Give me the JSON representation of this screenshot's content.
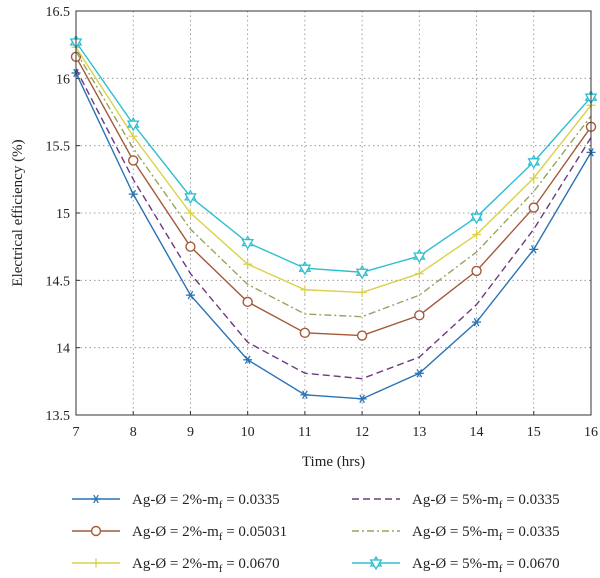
{
  "chart_data": {
    "type": "line",
    "title": "",
    "xlabel": "Time (hrs)",
    "ylabel": "Electrical efficiency (%)",
    "xlim": [
      7,
      16
    ],
    "ylim": [
      13.5,
      16.5
    ],
    "x": [
      7,
      8,
      9,
      10,
      11,
      12,
      13,
      14,
      15,
      16
    ],
    "xticks": [
      "7",
      "8",
      "9",
      "10",
      "11",
      "12",
      "13",
      "14",
      "15",
      "16"
    ],
    "yticks": [
      "13.5",
      "14",
      "14.5",
      "15",
      "15.5",
      "16",
      "16.5"
    ],
    "grid": true,
    "legend_position": "bottom",
    "series": [
      {
        "name": "Ag-Ø = 2%-m",
        "name_sub": "f",
        "name_tail": " = 0.0335",
        "color": "#2a73b6",
        "dash": "solid",
        "marker": "asterisk",
        "values": [
          16.04,
          15.14,
          14.39,
          13.91,
          13.65,
          13.62,
          13.81,
          14.19,
          14.73,
          15.45
        ]
      },
      {
        "name": "Ag-Ø = 5%-m",
        "name_sub": "f",
        "name_tail": " = 0.0335",
        "color": "#6e3a7e",
        "dash": "dashed",
        "marker": "none",
        "values": [
          16.07,
          15.25,
          14.55,
          14.04,
          13.81,
          13.77,
          13.93,
          14.32,
          14.88,
          15.56
        ]
      },
      {
        "name": "Ag-Ø = 2%-m",
        "name_sub": "f",
        "name_tail": " = 0.05031",
        "color": "#a25a3a",
        "dash": "solid",
        "marker": "circle",
        "values": [
          16.16,
          15.39,
          14.75,
          14.34,
          14.11,
          14.09,
          14.24,
          14.57,
          15.04,
          15.64
        ]
      },
      {
        "name": "Ag-Ø = 5%-m",
        "name_sub": "f",
        "name_tail": " = 0.0335",
        "color": "#9aa35e",
        "dash": "dashdot",
        "marker": "none",
        "values": [
          16.2,
          15.48,
          14.88,
          14.47,
          14.25,
          14.23,
          14.39,
          14.71,
          15.16,
          15.72
        ]
      },
      {
        "name": "Ag-Ø = 2%-m",
        "name_sub": "f",
        "name_tail": " = 0.0670",
        "color": "#d9d24a",
        "dash": "solid",
        "marker": "plus",
        "values": [
          16.23,
          15.57,
          15.0,
          14.62,
          14.43,
          14.41,
          14.55,
          14.84,
          15.26,
          15.8
        ]
      },
      {
        "name": "Ag-Ø = 5%-m",
        "name_sub": "f",
        "name_tail": " = 0.0670",
        "color": "#2ebfcf",
        "dash": "solid",
        "marker": "hexagram",
        "values": [
          16.27,
          15.66,
          15.12,
          14.78,
          14.59,
          14.56,
          14.68,
          14.97,
          15.38,
          15.86
        ]
      }
    ],
    "legend_order": [
      0,
      1,
      2,
      3,
      4,
      5
    ]
  }
}
